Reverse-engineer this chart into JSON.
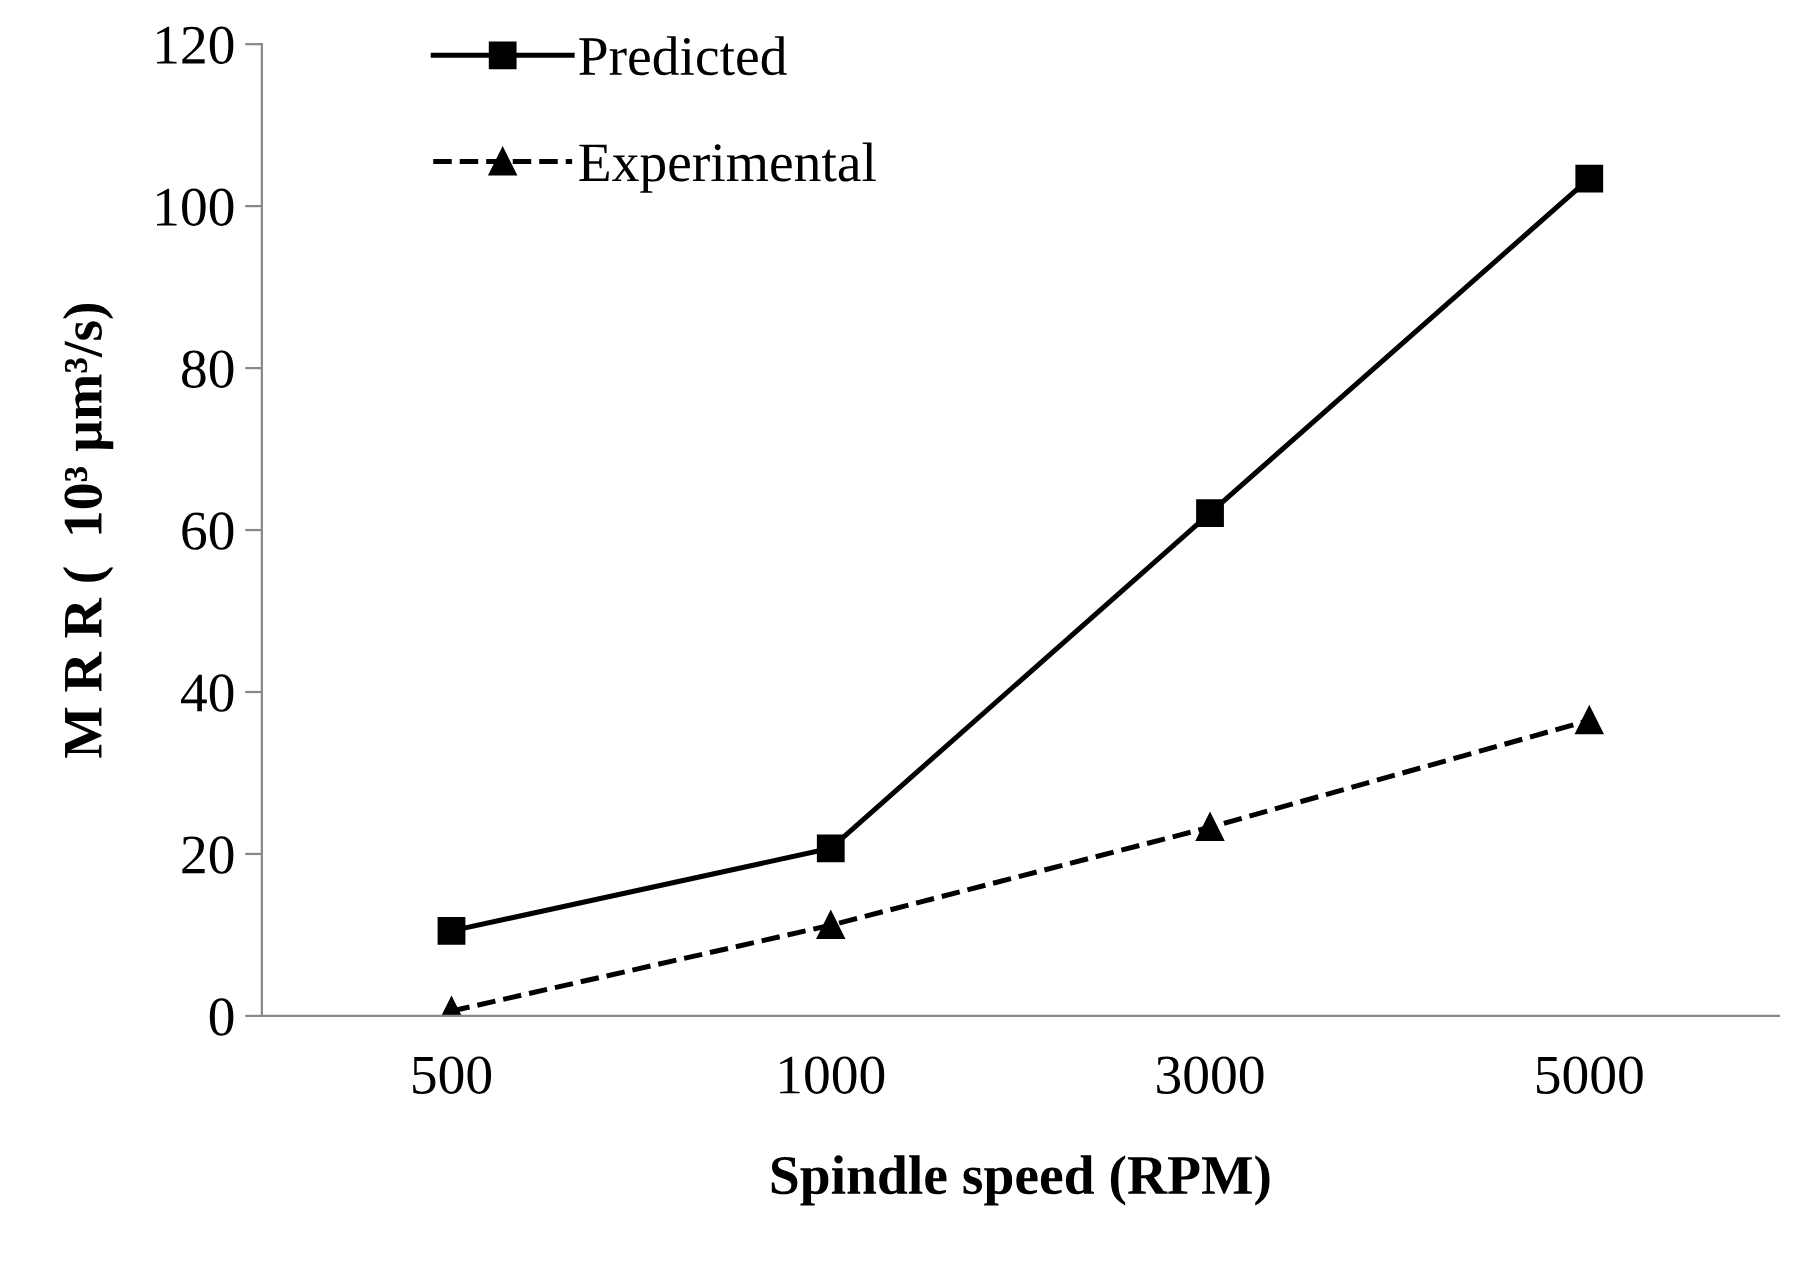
{
  "chart_data": {
    "type": "line",
    "categories": [
      "500",
      "1000",
      "3000",
      "5000"
    ],
    "xlabel": "Spindle speed (RPM)",
    "ylabel": "M R R (  10³ µm³/s)",
    "ylim": [
      0,
      120
    ],
    "yticks": [
      0,
      20,
      40,
      60,
      80,
      100,
      120
    ],
    "grid": false,
    "legend": "top left",
    "series": [
      {
        "name": "Predicted",
        "color": "#000000",
        "marker": "square",
        "line_style": "solid",
        "values": [
          10.5,
          20.7,
          62.1,
          103.4
        ]
      },
      {
        "name": "Experimental",
        "color": "#000000",
        "marker": "triangle",
        "line_style": "dashed",
        "values": [
          0.6,
          11.2,
          23.3,
          36.5
        ]
      }
    ]
  }
}
